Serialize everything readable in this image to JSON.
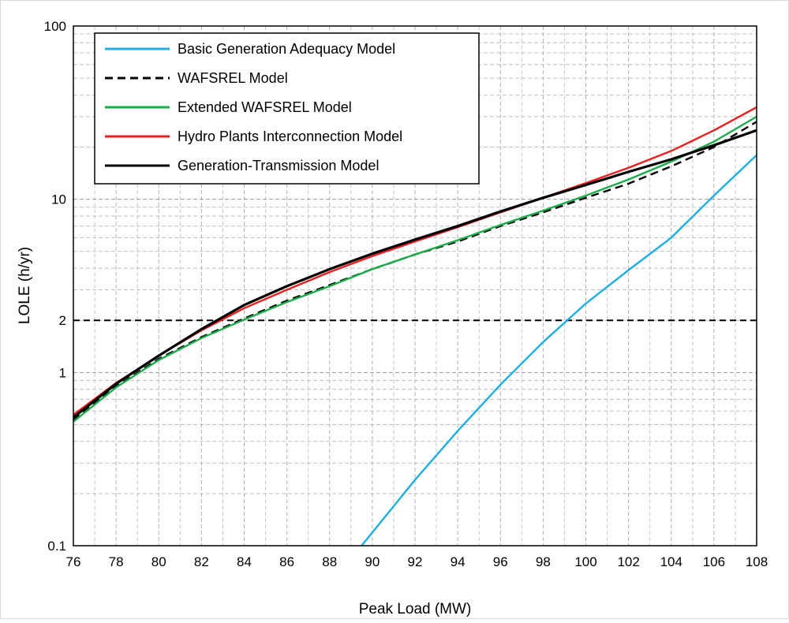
{
  "chart_data": {
    "type": "line",
    "title": "",
    "xlabel": "Peak Load (MW)",
    "ylabel": "LOLE (h/yr)",
    "xlim": [
      76,
      108
    ],
    "ylim": [
      0.1,
      100
    ],
    "y_scale": "log",
    "x_ticks": [
      "76",
      "78",
      "80",
      "82",
      "84",
      "86",
      "88",
      "90",
      "92",
      "94",
      "96",
      "98",
      "100",
      "102",
      "104",
      "106",
      "108"
    ],
    "y_ticks": [
      {
        "value": 0.1,
        "label": "0.1"
      },
      {
        "value": 1,
        "label": "1"
      },
      {
        "value": 2,
        "label": "2"
      },
      {
        "value": 10,
        "label": "10"
      },
      {
        "value": 100,
        "label": "100"
      }
    ],
    "grid": true,
    "legend_position": "top-left",
    "reference_line": {
      "y": 2,
      "style": "dashed",
      "color": "#000000"
    },
    "series": [
      {
        "name": "Basic Generation Adequacy Model",
        "color": "#1eaee6",
        "style": "solid",
        "x": [
          89.5,
          92,
          94,
          96,
          98,
          100,
          102,
          104,
          106,
          108
        ],
        "y": [
          0.1,
          0.24,
          0.46,
          0.85,
          1.5,
          2.5,
          3.9,
          6.0,
          10.5,
          18.0
        ]
      },
      {
        "name": "WAFSREL Model",
        "color": "#000000",
        "style": "dashed",
        "x": [
          76,
          78,
          80,
          82,
          84,
          86,
          88,
          90,
          92,
          94,
          96,
          98,
          100,
          102,
          104,
          106,
          108
        ],
        "y": [
          0.53,
          0.83,
          1.2,
          1.6,
          2.05,
          2.6,
          3.2,
          3.95,
          4.8,
          5.7,
          7.0,
          8.4,
          10.2,
          12.3,
          15.5,
          20.0,
          28.0
        ]
      },
      {
        "name": "Extended WAFSREL Model",
        "color": "#1aad4a",
        "style": "solid",
        "x": [
          76,
          78,
          80,
          82,
          84,
          86,
          88,
          90,
          92,
          94,
          96,
          98,
          100,
          102,
          104,
          106,
          108
        ],
        "y": [
          0.52,
          0.82,
          1.18,
          1.58,
          2.02,
          2.55,
          3.15,
          3.95,
          4.8,
          5.8,
          7.1,
          8.6,
          10.5,
          13.0,
          16.5,
          21.5,
          30.0
        ]
      },
      {
        "name": "Hydro Plants Interconnection Model",
        "color": "#e8201f",
        "style": "solid",
        "x": [
          76,
          78,
          80,
          82,
          84,
          86,
          88,
          90,
          92,
          94,
          96,
          98,
          100,
          102,
          104,
          106,
          108
        ],
        "y": [
          0.57,
          0.87,
          1.25,
          1.75,
          2.35,
          3.0,
          3.8,
          4.7,
          5.7,
          6.9,
          8.4,
          10.2,
          12.4,
          15.2,
          19.0,
          25.0,
          34.0
        ]
      },
      {
        "name": "Generation-Transmission Model",
        "color": "#000000",
        "style": "solid",
        "x": [
          76,
          78,
          80,
          82,
          84,
          86,
          88,
          90,
          92,
          94,
          96,
          98,
          100,
          102,
          104,
          106,
          108
        ],
        "y": [
          0.55,
          0.86,
          1.25,
          1.78,
          2.45,
          3.15,
          3.95,
          4.85,
          5.85,
          7.0,
          8.5,
          10.2,
          12.1,
          14.4,
          17.0,
          20.5,
          25.0
        ]
      }
    ]
  }
}
